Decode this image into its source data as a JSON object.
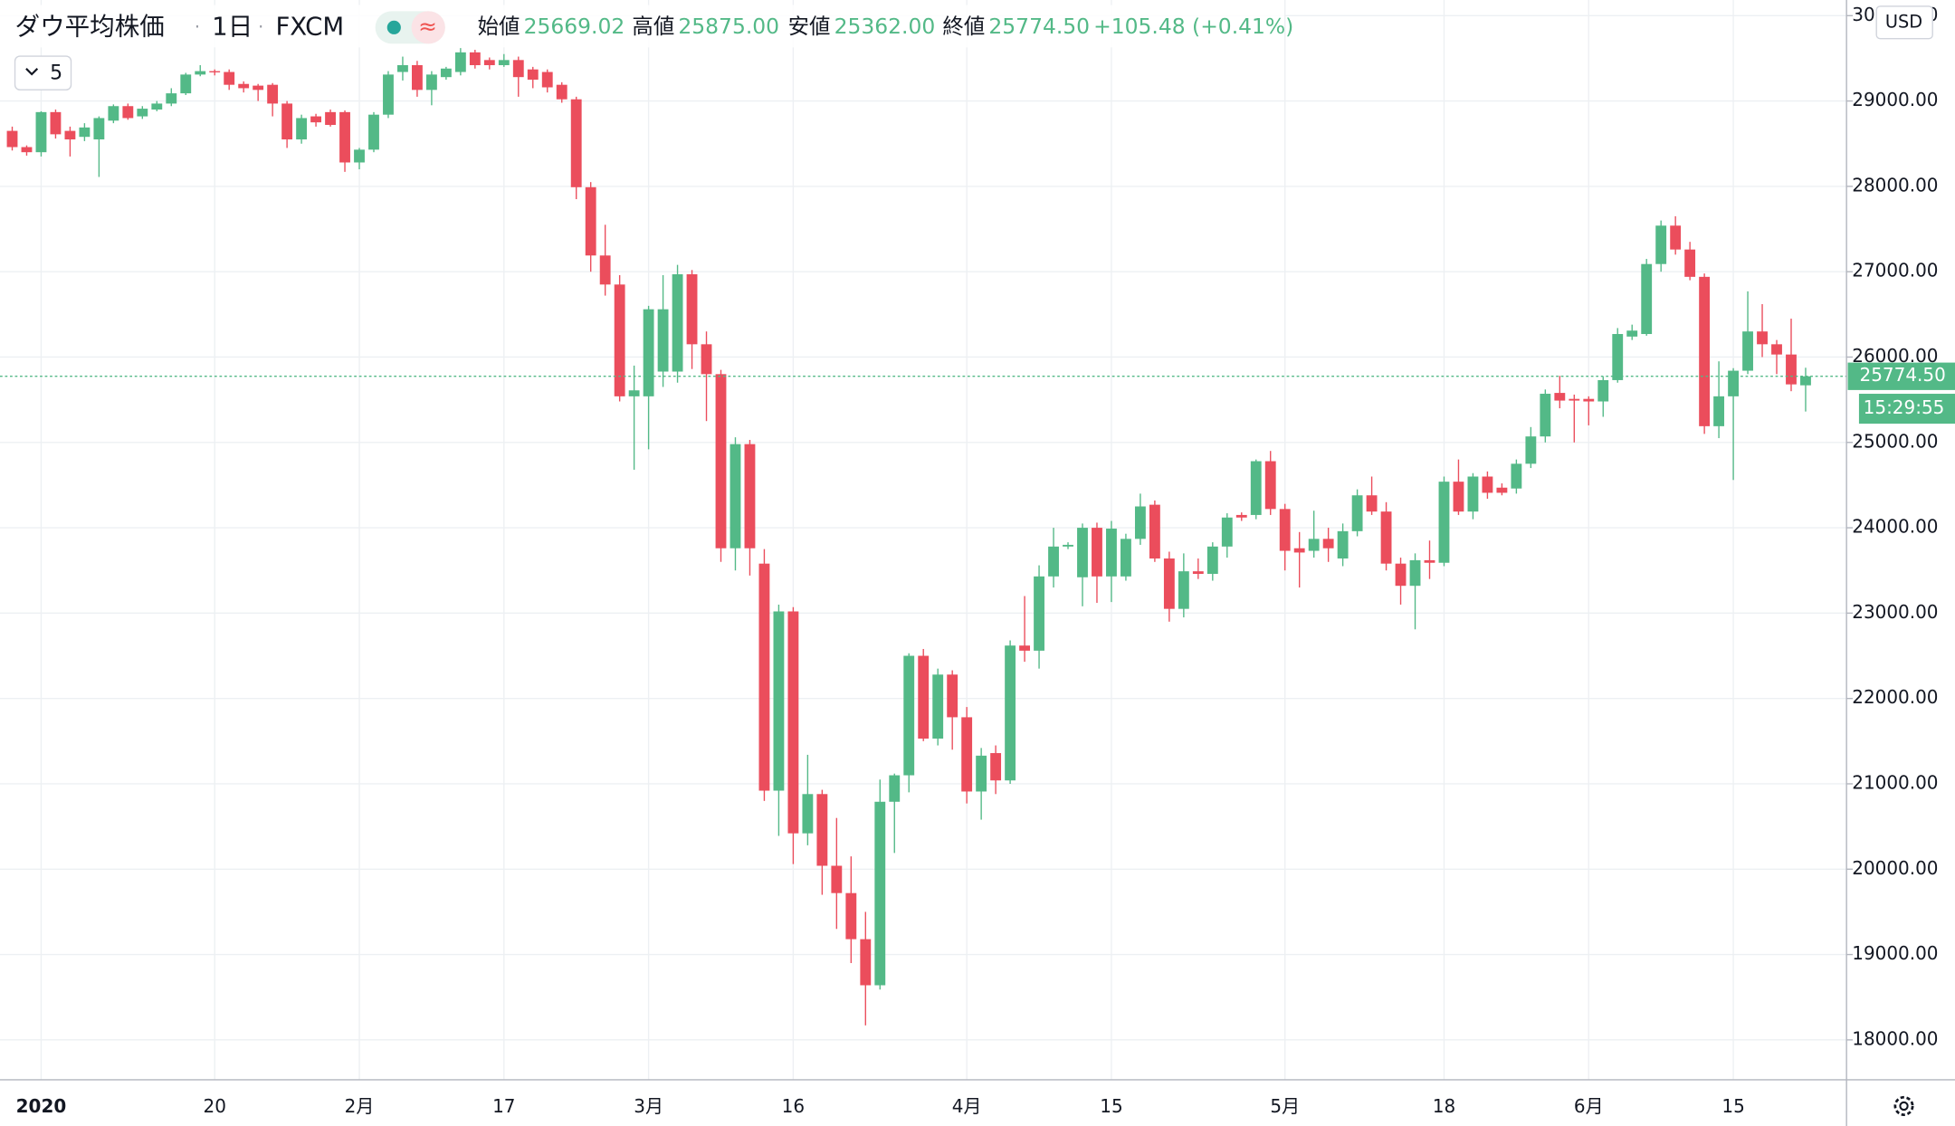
{
  "chart_data": {
    "type": "candlestick",
    "title": "ダウ平均株価",
    "interval": "1日",
    "source": "FXCM",
    "indicator_count": "5",
    "currency": "USD",
    "countdown": "15:29:55",
    "legend": [
      {
        "name": "始値",
        "value": "25669.02"
      },
      {
        "name": "高値",
        "value": "25875.00"
      },
      {
        "name": "安値",
        "value": "25362.00"
      },
      {
        "name": "終値",
        "value": "25774.50"
      }
    ],
    "change": "+105.48 (+0.41%)",
    "up_color": "#53b987",
    "down_color": "#eb4d5c",
    "grid": true,
    "ylim": [
      17532,
      30183
    ],
    "yticks": [
      {
        "value": 18000,
        "label": "18000.00"
      },
      {
        "value": 19000,
        "label": "19000.00"
      },
      {
        "value": 20000,
        "label": "20000.00"
      },
      {
        "value": 21000,
        "label": "21000.00"
      },
      {
        "value": 22000,
        "label": "22000.00"
      },
      {
        "value": 23000,
        "label": "23000.00"
      },
      {
        "value": 24000,
        "label": "24000.00"
      },
      {
        "value": 25000,
        "label": "25000.00"
      },
      {
        "value": 26000,
        "label": "26000.00"
      },
      {
        "value": 27000,
        "label": "27000.00"
      },
      {
        "value": 28000,
        "label": "28000.00"
      },
      {
        "value": 29000,
        "label": "29000.00"
      },
      {
        "value": 30000,
        "label": "30000.00"
      }
    ],
    "categories": [
      null,
      null,
      "2020",
      null,
      null,
      null,
      null,
      null,
      null,
      null,
      null,
      null,
      null,
      null,
      "20",
      null,
      null,
      null,
      null,
      null,
      null,
      null,
      null,
      null,
      "2月",
      null,
      null,
      null,
      null,
      null,
      null,
      null,
      null,
      null,
      "17",
      null,
      null,
      null,
      null,
      null,
      null,
      null,
      null,
      null,
      "3月",
      null,
      null,
      null,
      null,
      null,
      null,
      null,
      null,
      null,
      "16",
      null,
      null,
      null,
      null,
      null,
      null,
      null,
      null,
      null,
      null,
      null,
      "4月",
      null,
      null,
      null,
      null,
      null,
      null,
      null,
      null,
      null,
      "15",
      null,
      null,
      null,
      null,
      null,
      null,
      null,
      null,
      null,
      null,
      null,
      "5月",
      null,
      null,
      null,
      null,
      null,
      null,
      null,
      null,
      null,
      null,
      "18",
      null,
      null,
      null,
      null,
      null,
      null,
      null,
      null,
      null,
      "6月",
      null,
      null,
      null,
      null,
      null,
      null,
      null,
      null,
      null,
      "15",
      null,
      null,
      null,
      null,
      null
    ],
    "open": [
      28650,
      28460,
      28400,
      28870,
      28650,
      28580,
      28550,
      28770,
      28940,
      28820,
      28900,
      28970,
      29090,
      29310,
      29350,
      29340,
      29200,
      29180,
      29190,
      28970,
      28550,
      28820,
      28870,
      28870,
      28280,
      28430,
      28840,
      29340,
      29420,
      29130,
      29280,
      29340,
      29570,
      29480,
      29420,
      29480,
      29370,
      29340,
      29190,
      29020,
      27990,
      27190,
      26850,
      25540,
      25540,
      25830,
      25830,
      26970,
      26150,
      25800,
      23760,
      24980,
      23580,
      20920,
      23020,
      20420,
      20880,
      20040,
      19720,
      19180,
      18640,
      20790,
      21100,
      22500,
      21530,
      22280,
      21780,
      20910,
      21360,
      21040,
      22620,
      22560,
      23430,
      23780,
      23420,
      24000,
      23430,
      23430,
      23870,
      24270,
      23640,
      23050,
      23490,
      23460,
      23780,
      24150,
      24150,
      24780,
      24220,
      23760,
      23730,
      23870,
      23640,
      23960,
      24380,
      24190,
      23580,
      23320,
      23620,
      23590,
      24540,
      24190,
      24600,
      24470,
      24460,
      24750,
      25070,
      25580,
      25510,
      25510,
      25480,
      25730,
      26240,
      26270,
      27090,
      27540,
      27260,
      26940,
      25190,
      25540,
      25840,
      26300,
      26150,
      26030,
      25669.02
    ],
    "high": [
      28700,
      28480,
      28880,
      28900,
      28700,
      28740,
      28820,
      28960,
      28970,
      28940,
      29000,
      29150,
      29330,
      29420,
      29370,
      29370,
      29230,
      29200,
      29210,
      29000,
      28840,
      28850,
      28900,
      28890,
      28450,
      28870,
      29350,
      29520,
      29470,
      29350,
      29400,
      29620,
      29600,
      29510,
      29550,
      29520,
      29400,
      29370,
      29220,
      29050,
      28050,
      27550,
      26960,
      25900,
      26600,
      26960,
      27080,
      27020,
      26300,
      25850,
      25060,
      25030,
      23750,
      23100,
      23070,
      21340,
      20930,
      20600,
      20150,
      19500,
      21050,
      21120,
      22530,
      22580,
      22350,
      22330,
      21900,
      21420,
      21450,
      22680,
      23200,
      23560,
      24000,
      23830,
      24050,
      24060,
      24080,
      23930,
      24400,
      24320,
      23720,
      23700,
      23640,
      23830,
      24170,
      24180,
      24800,
      24900,
      24280,
      23950,
      24200,
      24000,
      24050,
      24450,
      24600,
      24300,
      23650,
      23700,
      23850,
      24600,
      24800,
      24640,
      24660,
      24520,
      24800,
      25180,
      25620,
      25780,
      25560,
      25540,
      25770,
      26340,
      26380,
      27150,
      27600,
      27650,
      27350,
      26980,
      25950,
      25870,
      26770,
      26620,
      26200,
      26450,
      25875
    ],
    "low": [
      28420,
      28360,
      28350,
      28560,
      28350,
      28530,
      28110,
      28740,
      28780,
      28790,
      28880,
      28940,
      29070,
      29290,
      29300,
      29130,
      29100,
      29000,
      28820,
      28450,
      28500,
      28700,
      28700,
      28170,
      28200,
      28400,
      28800,
      29240,
      29050,
      28950,
      29250,
      29300,
      29380,
      29370,
      29400,
      29050,
      29150,
      29100,
      28980,
      27850,
      27000,
      26720,
      25480,
      24680,
      24920,
      25650,
      25700,
      25860,
      25250,
      23600,
      23500,
      23440,
      20800,
      20390,
      20060,
      20280,
      19700,
      19300,
      18900,
      18170,
      18590,
      20190,
      20900,
      21500,
      21450,
      21400,
      20770,
      20580,
      20880,
      21000,
      22430,
      22350,
      23300,
      23750,
      23080,
      23120,
      23130,
      23380,
      23800,
      23600,
      22900,
      22950,
      23400,
      23380,
      23650,
      24080,
      24100,
      24150,
      23500,
      23300,
      23650,
      23600,
      23550,
      23900,
      24150,
      23500,
      23100,
      22810,
      23400,
      23550,
      24150,
      24100,
      24340,
      24380,
      24400,
      24700,
      25000,
      25400,
      25000,
      25200,
      25300,
      25700,
      26200,
      26250,
      27000,
      27200,
      26900,
      25100,
      25050,
      24560,
      25800,
      26000,
      25800,
      25600,
      25362
    ],
    "close": [
      28460,
      28400,
      28870,
      28610,
      28550,
      28690,
      28800,
      28940,
      28800,
      28910,
      28970,
      29090,
      29310,
      29350,
      29340,
      29190,
      29150,
      29130,
      28970,
      28550,
      28800,
      28750,
      28720,
      28280,
      28430,
      28840,
      29310,
      29420,
      29130,
      29310,
      29380,
      29570,
      29420,
      29420,
      29480,
      29280,
      29250,
      29160,
      29020,
      27990,
      27190,
      26850,
      25540,
      25610,
      26560,
      26560,
      26970,
      26150,
      25800,
      23760,
      24980,
      23760,
      20920,
      23020,
      20420,
      20880,
      20040,
      19720,
      19180,
      18640,
      20790,
      21100,
      22500,
      21530,
      22280,
      21780,
      20910,
      21330,
      21040,
      22620,
      22560,
      23430,
      23780,
      23800,
      24000,
      23430,
      23990,
      23870,
      24250,
      23640,
      23050,
      23490,
      23460,
      23780,
      24120,
      24120,
      24780,
      24220,
      23730,
      23710,
      23870,
      23760,
      23960,
      24380,
      24190,
      23580,
      23320,
      23620,
      23590,
      24540,
      24190,
      24600,
      24410,
      24410,
      24750,
      25070,
      25570,
      25490,
      25490,
      25480,
      25730,
      26270,
      26310,
      27090,
      27540,
      27260,
      26940,
      25190,
      25540,
      25840,
      26300,
      26150,
      26030,
      25680,
      25774.5
    ]
  }
}
